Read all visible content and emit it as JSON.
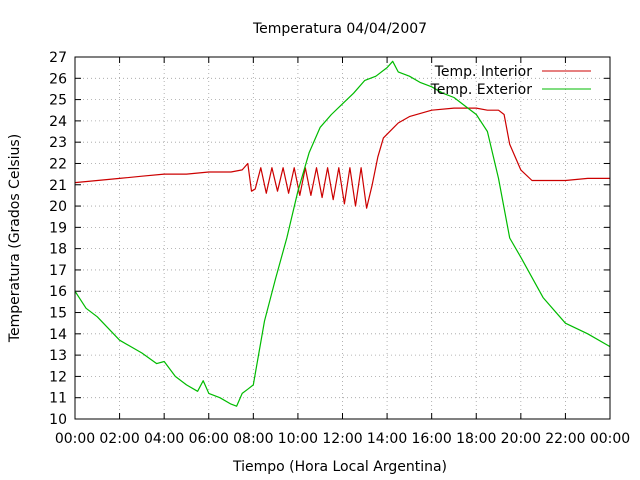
{
  "chart_data": {
    "type": "line",
    "title": "Temperatura 04/04/2007",
    "xlabel": "Tiempo (Hora Local Argentina)",
    "ylabel": "Temperatura (Grados Celsius)",
    "xlim": [
      0,
      24
    ],
    "ylim": [
      10,
      27
    ],
    "grid": true,
    "legend_position": "top-right",
    "x_ticks": [
      "00:00",
      "02:00",
      "04:00",
      "06:00",
      "08:00",
      "10:00",
      "12:00",
      "14:00",
      "16:00",
      "18:00",
      "20:00",
      "22:00",
      "00:00"
    ],
    "y_ticks": [
      "10",
      "11",
      "12",
      "13",
      "14",
      "15",
      "16",
      "17",
      "18",
      "19",
      "20",
      "21",
      "22",
      "23",
      "24",
      "25",
      "26",
      "27"
    ],
    "series": [
      {
        "name": "Temp. Interior",
        "color": "#cc0000",
        "x": [
          "00:00",
          "01:00",
          "02:00",
          "03:00",
          "04:00",
          "05:00",
          "06:00",
          "07:00",
          "07:30",
          "07:45",
          "07:55",
          "08:05",
          "08:20",
          "08:35",
          "08:50",
          "09:05",
          "09:20",
          "09:35",
          "09:50",
          "10:05",
          "10:20",
          "10:35",
          "10:50",
          "11:05",
          "11:20",
          "11:35",
          "11:50",
          "12:05",
          "12:20",
          "12:35",
          "12:50",
          "13:05",
          "13:20",
          "13:35",
          "13:50",
          "14:30",
          "15:00",
          "16:00",
          "17:00",
          "18:00",
          "18:30",
          "19:00",
          "19:15",
          "19:30",
          "20:00",
          "20:30",
          "21:00",
          "22:00",
          "23:00",
          "24:00"
        ],
        "y": [
          21.1,
          21.2,
          21.3,
          21.4,
          21.5,
          21.5,
          21.6,
          21.6,
          21.7,
          22.0,
          20.7,
          20.8,
          21.8,
          20.6,
          21.8,
          20.7,
          21.8,
          20.6,
          21.8,
          20.5,
          21.8,
          20.5,
          21.8,
          20.4,
          21.8,
          20.3,
          21.8,
          20.1,
          21.8,
          20.0,
          21.8,
          19.9,
          21.0,
          22.3,
          23.2,
          23.9,
          24.2,
          24.5,
          24.6,
          24.6,
          24.5,
          24.5,
          24.3,
          22.9,
          21.7,
          21.2,
          21.2,
          21.2,
          21.3,
          21.3
        ]
      },
      {
        "name": "Temp. Exterior",
        "color": "#00bb00",
        "x": [
          "00:00",
          "00:30",
          "01:00",
          "02:00",
          "03:00",
          "03:40",
          "04:00",
          "04:30",
          "05:00",
          "05:30",
          "05:45",
          "06:00",
          "06:30",
          "07:00",
          "07:15",
          "07:30",
          "07:45",
          "08:00",
          "08:30",
          "09:00",
          "09:30",
          "10:00",
          "10:30",
          "11:00",
          "11:30",
          "12:00",
          "12:30",
          "13:00",
          "13:30",
          "14:00",
          "14:15",
          "14:30",
          "15:00",
          "15:30",
          "16:00",
          "16:30",
          "17:00",
          "17:30",
          "18:00",
          "18:30",
          "19:00",
          "19:30",
          "20:00",
          "21:00",
          "22:00",
          "23:00",
          "24:00"
        ],
        "y": [
          16.0,
          15.2,
          14.8,
          13.7,
          13.1,
          12.6,
          12.7,
          12.0,
          11.6,
          11.3,
          11.8,
          11.2,
          11.0,
          10.7,
          10.6,
          11.2,
          11.4,
          11.6,
          14.6,
          16.6,
          18.5,
          20.7,
          22.5,
          23.7,
          24.3,
          24.8,
          25.3,
          25.9,
          26.1,
          26.5,
          26.8,
          26.3,
          26.1,
          25.8,
          25.6,
          25.3,
          25.1,
          24.7,
          24.3,
          23.5,
          21.3,
          18.5,
          17.6,
          15.7,
          14.5,
          14.0,
          13.4
        ]
      }
    ]
  }
}
